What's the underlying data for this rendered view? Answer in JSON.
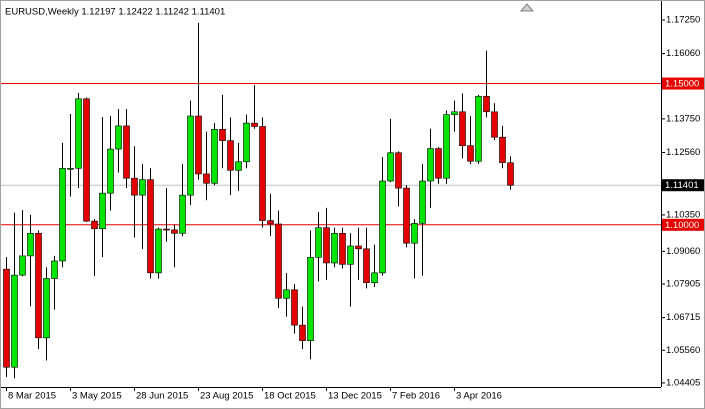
{
  "chart_data": {
    "type": "candlestick",
    "title": "EURUSD,Weekly  1.12197 1.12422 1.11242 1.11401",
    "categories": [
      "8 Mar 2015",
      null,
      null,
      null,
      null,
      null,
      null,
      null,
      "3 May 2015",
      null,
      null,
      null,
      null,
      null,
      null,
      null,
      "28 Jun 2015",
      null,
      null,
      null,
      null,
      null,
      null,
      null,
      "23 Aug 2015",
      null,
      null,
      null,
      null,
      null,
      null,
      null,
      "18 Oct 2015",
      null,
      null,
      null,
      null,
      null,
      null,
      null,
      "13 Dec 2015",
      null,
      null,
      null,
      null,
      null,
      null,
      null,
      "7 Feb 2016",
      null,
      null,
      null,
      null,
      null,
      null,
      null,
      "3 Apr 2016",
      null,
      null,
      null,
      null,
      null,
      null,
      null
    ],
    "open": [
      1.0843,
      1.0496,
      1.0822,
      1.089,
      1.097,
      1.06,
      1.081,
      1.0872,
      1.12,
      1.12,
      1.1446,
      1.1013,
      1.0986,
      1.1112,
      1.1268,
      1.135,
      1.1165,
      1.1105,
      1.116,
      1.083,
      1.0985,
      1.0982,
      1.097,
      1.1105,
      1.1385,
      1.118,
      1.1147,
      1.1338,
      1.1298,
      1.1193,
      1.1223,
      1.136,
      1.1348,
      1.1015,
      1.1003,
      1.074,
      1.077,
      1.0645,
      1.059,
      1.0885,
      1.099,
      1.0865,
      1.097,
      1.086,
      1.0925,
      1.0915,
      1.0795,
      1.083,
      1.1155,
      1.1255,
      1.113,
      1.0935,
      1.1005,
      1.1155,
      1.127,
      1.1165,
      1.139,
      1.14,
      1.128,
      1.1225,
      1.1455,
      1.14,
      1.131,
      1.12197
    ],
    "high": [
      1.0886,
      1.1043,
      1.1052,
      1.1035,
      1.098,
      1.085,
      1.089,
      1.129,
      1.1392,
      1.1467,
      1.145,
      1.102,
      1.1381,
      1.1386,
      1.141,
      1.141,
      1.1278,
      1.1215,
      1.12,
      1.099,
      1.113,
      1.1,
      1.1215,
      1.144,
      1.1714,
      1.133,
      1.136,
      1.146,
      1.138,
      1.129,
      1.139,
      1.1495,
      1.138,
      1.111,
      1.105,
      1.083,
      1.079,
      1.071,
      1.098,
      1.1045,
      1.106,
      1.099,
      1.099,
      1.097,
      1.099,
      1.099,
      1.093,
      1.124,
      1.1375,
      1.126,
      1.114,
      1.102,
      1.1215,
      1.134,
      1.1275,
      1.1405,
      1.144,
      1.1465,
      1.1385,
      1.146,
      1.1616,
      1.143,
      1.135,
      1.12422
    ],
    "low": [
      1.0462,
      1.0457,
      1.0818,
      1.0712,
      1.056,
      1.052,
      1.07,
      1.085,
      1.11,
      1.113,
      1.101,
      1.0819,
      1.0886,
      1.105,
      1.1185,
      1.113,
      1.0955,
      1.0915,
      1.081,
      1.081,
      1.094,
      1.085,
      1.096,
      1.107,
      1.116,
      1.1087,
      1.114,
      1.12,
      1.1105,
      1.112,
      1.12,
      1.134,
      1.099,
      1.096,
      1.0705,
      1.0675,
      1.0615,
      1.056,
      1.0524,
      1.08,
      1.0805,
      1.085,
      1.0845,
      1.071,
      1.0805,
      1.0775,
      1.078,
      1.082,
      1.115,
      1.1065,
      1.092,
      1.081,
      1.082,
      1.106,
      1.1145,
      1.1145,
      1.133,
      1.1235,
      1.1215,
      1.1215,
      1.138,
      1.13,
      1.12,
      1.11242
    ],
    "close": [
      1.0496,
      1.0822,
      1.089,
      1.097,
      1.06,
      1.081,
      1.0872,
      1.12,
      1.12,
      1.1446,
      1.1013,
      1.0986,
      1.1112,
      1.1268,
      1.135,
      1.1165,
      1.1105,
      1.116,
      1.083,
      1.0985,
      1.0982,
      1.097,
      1.1105,
      1.1385,
      1.118,
      1.1147,
      1.1338,
      1.1298,
      1.1193,
      1.1223,
      1.136,
      1.1348,
      1.1015,
      1.1003,
      1.074,
      1.077,
      1.0645,
      1.059,
      1.0885,
      1.099,
      1.0865,
      1.097,
      1.086,
      1.0925,
      1.0915,
      1.0795,
      1.083,
      1.1155,
      1.1255,
      1.113,
      1.0935,
      1.1005,
      1.1155,
      1.127,
      1.1165,
      1.139,
      1.14,
      1.128,
      1.1225,
      1.1455,
      1.14,
      1.131,
      1.122,
      1.11401
    ],
    "up_color": "#00e600",
    "down_color": "#e60000",
    "wick_color": "#000000",
    "ylim": [
      1.0426,
      1.1785
    ],
    "yticks": [
      {
        "value": 1.1725,
        "label": "1.17250"
      },
      {
        "value": 1.1606,
        "label": "1.16060"
      },
      {
        "value": 1.1375,
        "label": "1.13750"
      },
      {
        "value": 1.1256,
        "label": "1.12560"
      },
      {
        "value": 1.1035,
        "label": "1.10350"
      },
      {
        "value": 1.0906,
        "label": "1.09060"
      },
      {
        "value": 1.07905,
        "label": "1.07905"
      },
      {
        "value": 1.06715,
        "label": "1.06715"
      },
      {
        "value": 1.0556,
        "label": "1.05560"
      },
      {
        "value": 1.04405,
        "label": "1.04405"
      }
    ],
    "levels": [
      {
        "value": 1.15,
        "label": "1.15000",
        "color": "#e60000"
      },
      {
        "value": 1.1,
        "label": "1.10000",
        "color": "#e60000"
      }
    ],
    "current_price": {
      "value": 1.11401,
      "label": "1.11401",
      "color": "#c0c0c0"
    }
  }
}
